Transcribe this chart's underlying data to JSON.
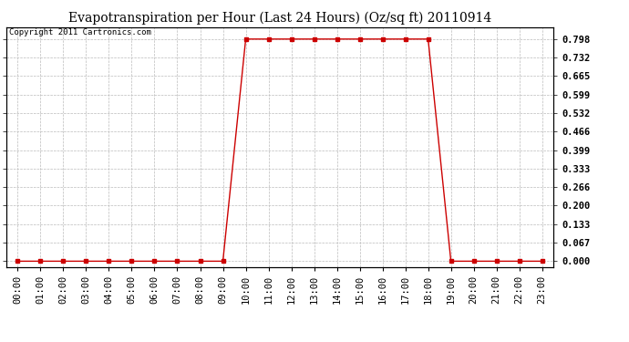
{
  "title": "Evapotranspiration per Hour (Last 24 Hours) (Oz/sq ft) 20110914",
  "copyright_text": "Copyright 2011 Cartronics.com",
  "x_labels": [
    "00:00",
    "01:00",
    "02:00",
    "03:00",
    "04:00",
    "05:00",
    "06:00",
    "07:00",
    "08:00",
    "09:00",
    "10:00",
    "11:00",
    "12:00",
    "13:00",
    "14:00",
    "15:00",
    "16:00",
    "17:00",
    "18:00",
    "19:00",
    "20:00",
    "21:00",
    "22:00",
    "23:00"
  ],
  "y_values": [
    0.0,
    0.0,
    0.0,
    0.0,
    0.0,
    0.0,
    0.0,
    0.0,
    0.0,
    0.0,
    0.798,
    0.798,
    0.798,
    0.798,
    0.798,
    0.798,
    0.798,
    0.798,
    0.798,
    0.0,
    0.0,
    0.0,
    0.0,
    0.0
  ],
  "y_ticks": [
    0.0,
    0.067,
    0.133,
    0.2,
    0.266,
    0.333,
    0.399,
    0.466,
    0.532,
    0.599,
    0.665,
    0.732,
    0.798
  ],
  "ylim_min": -0.02,
  "ylim_max": 0.84,
  "line_color": "#cc0000",
  "marker": "s",
  "marker_size": 2.5,
  "grid_color": "#bbbbbb",
  "background_color": "#ffffff",
  "title_fontsize": 10,
  "tick_fontsize": 7.5,
  "copyright_fontsize": 6.5
}
